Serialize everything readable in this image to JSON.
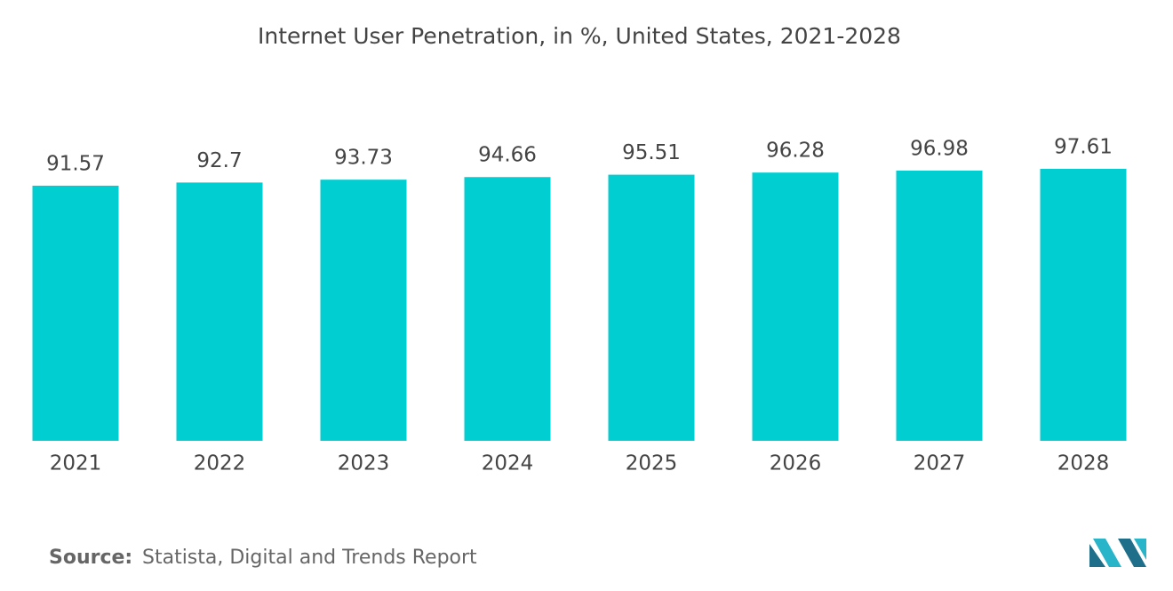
{
  "chart_data": {
    "type": "bar",
    "title": "Internet User Penetration, in %, United States, 2021-2028",
    "categories": [
      "2021",
      "2022",
      "2023",
      "2024",
      "2025",
      "2026",
      "2027",
      "2028"
    ],
    "values": [
      91.57,
      92.7,
      93.73,
      94.66,
      95.51,
      96.28,
      96.98,
      97.61
    ],
    "color": "#00ced1",
    "source_label": "Source:",
    "source": "Statista, Digital and Trends Report"
  }
}
